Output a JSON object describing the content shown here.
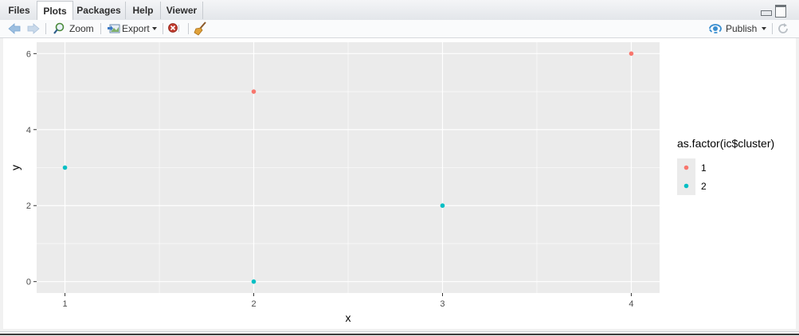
{
  "tabs": [
    {
      "label": "Files",
      "active": false
    },
    {
      "label": "Plots",
      "active": true
    },
    {
      "label": "Packages",
      "active": false
    },
    {
      "label": "Help",
      "active": false
    },
    {
      "label": "Viewer",
      "active": false
    }
  ],
  "toolbar": {
    "zoom_label": "Zoom",
    "export_label": "Export",
    "publish_label": "Publish"
  },
  "colors": {
    "cluster1": "#F8766D",
    "cluster2": "#00BFC4",
    "panel_bg": "#EBEBEB"
  },
  "chart_data": {
    "type": "scatter",
    "xlabel": "x",
    "ylabel": "y",
    "xlim": [
      0.85,
      4.15
    ],
    "ylim": [
      -0.3,
      6.3
    ],
    "x_ticks": [
      1,
      2,
      3,
      4
    ],
    "y_ticks": [
      0,
      2,
      4,
      6
    ],
    "legend": {
      "title": "as.factor(ic$cluster)",
      "position": "right"
    },
    "series": [
      {
        "name": "1",
        "color": "#F8766D",
        "points": [
          {
            "x": 2,
            "y": 5
          },
          {
            "x": 4,
            "y": 6
          }
        ]
      },
      {
        "name": "2",
        "color": "#00BFC4",
        "points": [
          {
            "x": 1,
            "y": 3
          },
          {
            "x": 2,
            "y": 0
          },
          {
            "x": 3,
            "y": 2
          }
        ]
      }
    ]
  }
}
